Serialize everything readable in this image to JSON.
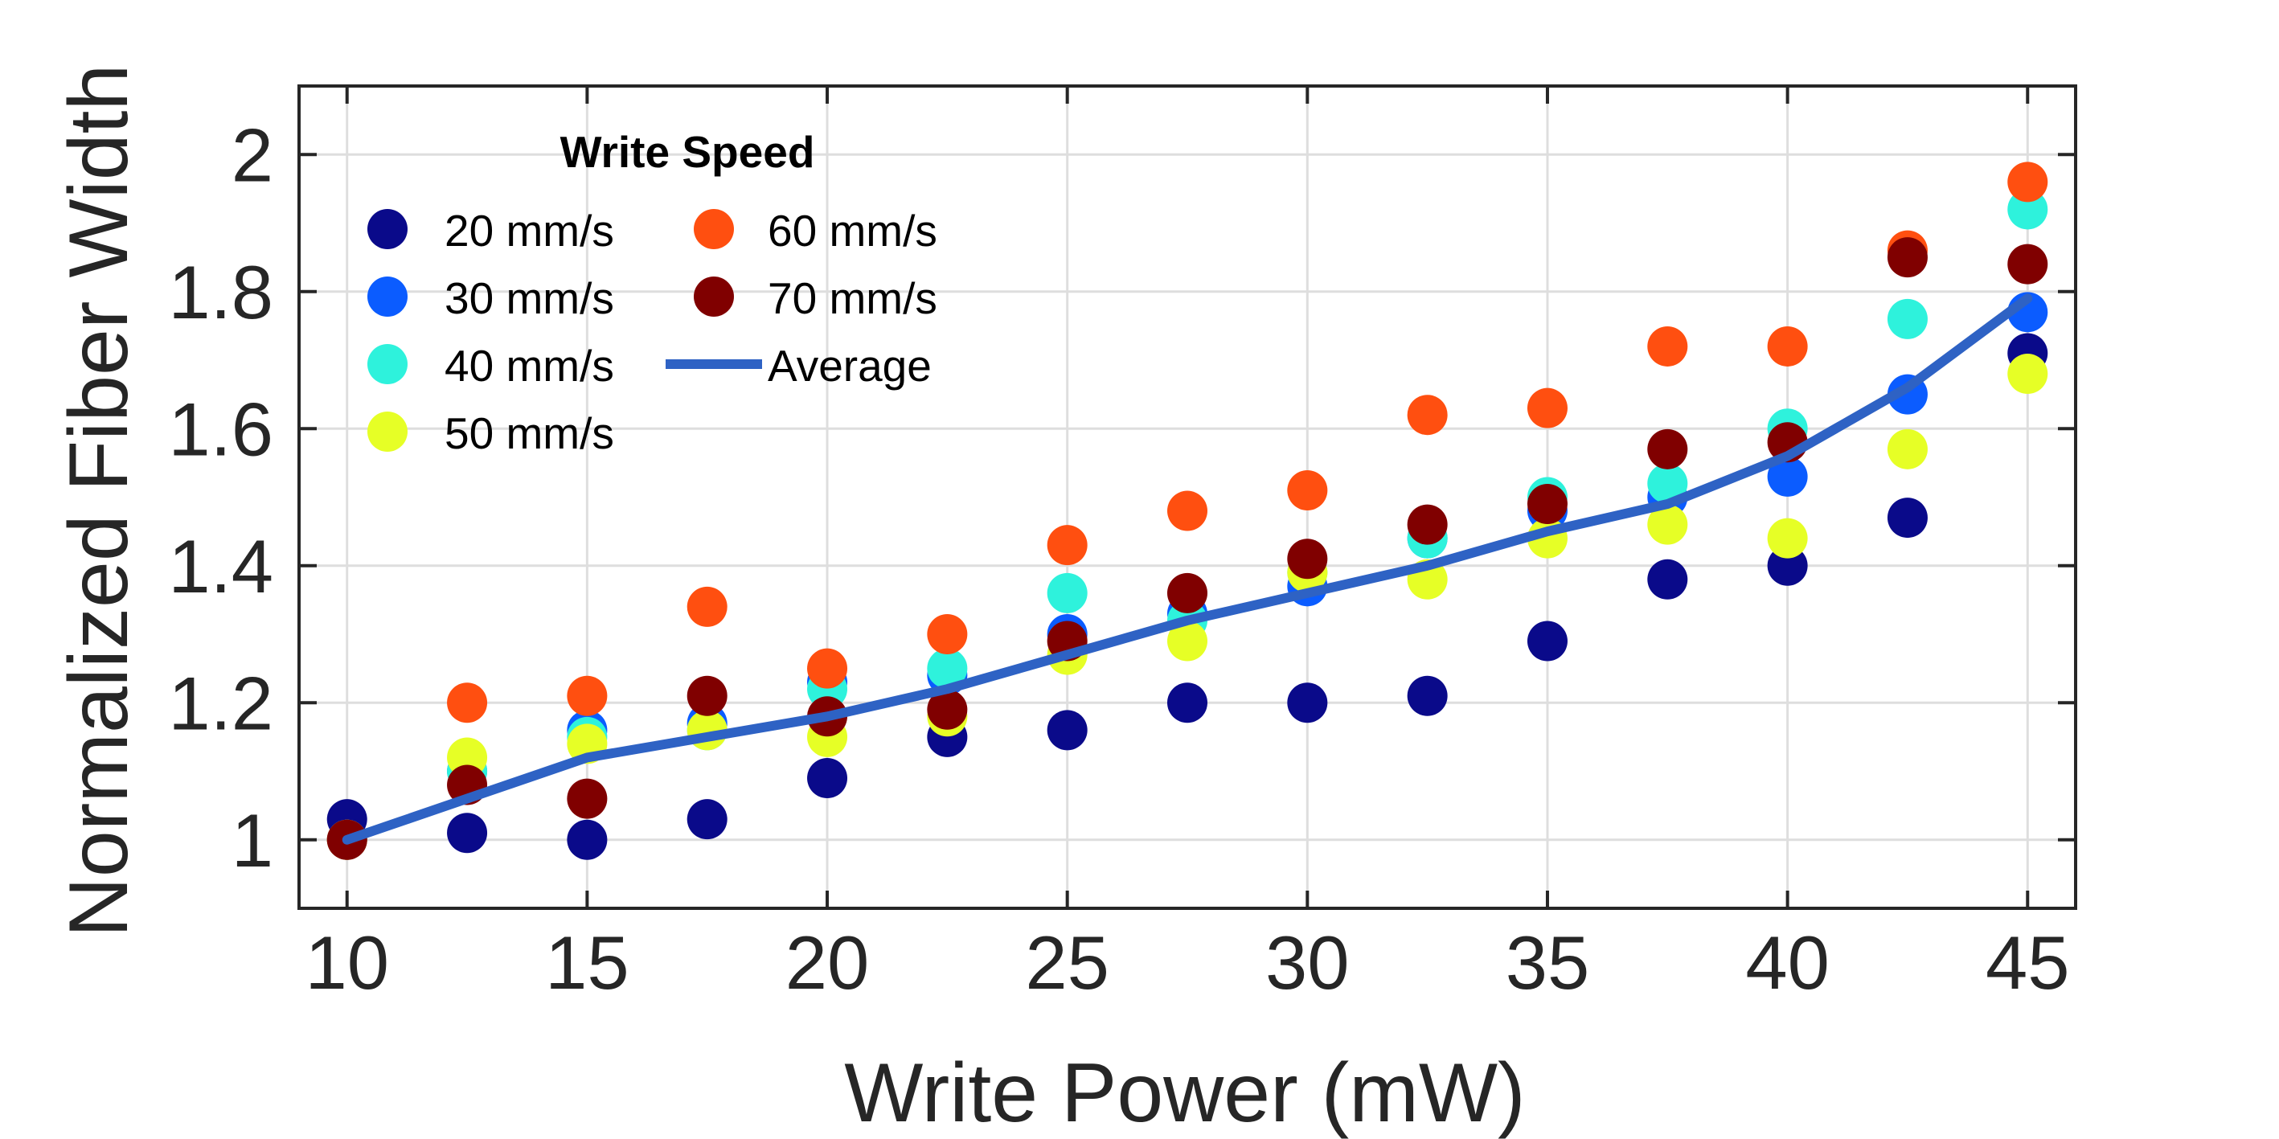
{
  "chart_data": {
    "type": "scatter",
    "xlabel": "Write Power (mW)",
    "ylabel": "Normalized Fiber Width",
    "xlim": [
      9,
      46
    ],
    "ylim": [
      0.9,
      2.1
    ],
    "xticks": [
      10,
      15,
      20,
      25,
      30,
      35,
      40,
      45
    ],
    "yticks": [
      1,
      1.2,
      1.4,
      1.6,
      1.8,
      2
    ],
    "ytick_labels": [
      "1",
      "1.2",
      "1.4",
      "1.6",
      "1.8",
      "2"
    ],
    "grid": true,
    "legend_title": "Write Speed",
    "legend_position": "top-left",
    "x": [
      10,
      12.5,
      15,
      17.5,
      20,
      22.5,
      25,
      27.5,
      30,
      32.5,
      35,
      37.5,
      40,
      42.5,
      45
    ],
    "series": [
      {
        "name": "20 mm/s",
        "color": "#0a0a8a",
        "values": [
          1.03,
          1.01,
          1.0,
          1.03,
          1.09,
          1.15,
          1.16,
          1.2,
          1.2,
          1.21,
          1.29,
          1.38,
          1.4,
          1.47,
          1.71
        ]
      },
      {
        "name": "30 mm/s",
        "color": "#0b5cff",
        "values": [
          1.0,
          1.1,
          1.16,
          1.17,
          1.23,
          1.24,
          1.3,
          1.33,
          1.37,
          1.44,
          1.48,
          1.5,
          1.53,
          1.65,
          1.77
        ]
      },
      {
        "name": "40 mm/s",
        "color": "#2ef2dc",
        "values": [
          1.0,
          1.1,
          1.15,
          1.16,
          1.22,
          1.25,
          1.36,
          1.32,
          1.39,
          1.44,
          1.5,
          1.52,
          1.6,
          1.76,
          1.92
        ]
      },
      {
        "name": "50 mm/s",
        "color": "#e6ff26",
        "values": [
          1.0,
          1.12,
          1.14,
          1.16,
          1.15,
          1.18,
          1.27,
          1.29,
          1.39,
          1.38,
          1.44,
          1.46,
          1.44,
          1.57,
          1.68
        ]
      },
      {
        "name": "60 mm/s",
        "color": "#ff4f10",
        "values": [
          1.0,
          1.2,
          1.21,
          1.34,
          1.25,
          1.3,
          1.43,
          1.48,
          1.51,
          1.62,
          1.63,
          1.72,
          1.72,
          1.86,
          1.96
        ]
      },
      {
        "name": "70 mm/s",
        "color": "#800000",
        "values": [
          1.0,
          1.08,
          1.06,
          1.21,
          1.18,
          1.19,
          1.29,
          1.36,
          1.41,
          1.46,
          1.49,
          1.57,
          1.58,
          1.85,
          1.84
        ]
      }
    ],
    "average": {
      "name": "Average",
      "color": "#2e62c4",
      "values": [
        1.0,
        1.06,
        1.12,
        1.15,
        1.18,
        1.22,
        1.27,
        1.32,
        1.36,
        1.4,
        1.45,
        1.49,
        1.56,
        1.66,
        1.79
      ]
    }
  }
}
